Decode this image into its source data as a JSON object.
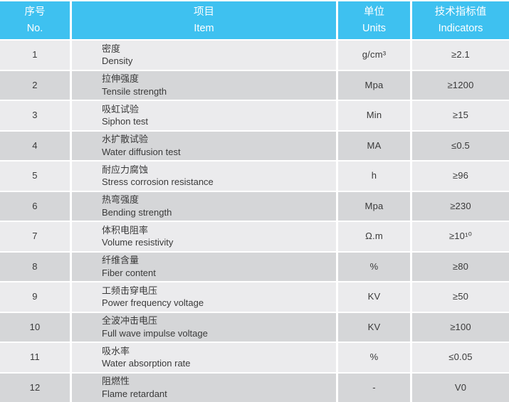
{
  "colors": {
    "header_bg": "#3EC1F0",
    "header_text": "#FFFFFF",
    "row_light": "#EBEBED",
    "row_dark": "#D5D6D8",
    "cell_text": "#3A3A3A"
  },
  "table": {
    "headers": [
      {
        "zh": "序号",
        "en": "No."
      },
      {
        "zh": "项目",
        "en": "Item"
      },
      {
        "zh": "单位",
        "en": "Units"
      },
      {
        "zh": "技术指标值",
        "en": "Indicators"
      }
    ],
    "rows": [
      {
        "no": "1",
        "item_zh": "密度",
        "item_en": "Density",
        "unit": "g/cm³",
        "indicator": "≥2.1"
      },
      {
        "no": "2",
        "item_zh": "拉伸强度",
        "item_en": "Tensile strength",
        "unit": "Mpa",
        "indicator": "≥1200"
      },
      {
        "no": "3",
        "item_zh": "吸虹试验",
        "item_en": "Siphon test",
        "unit": "Min",
        "indicator": "≥15"
      },
      {
        "no": "4",
        "item_zh": "水扩散试验",
        "item_en": "Water diffusion test",
        "unit": "MA",
        "indicator": "≤0.5"
      },
      {
        "no": "5",
        "item_zh": "耐应力腐蚀",
        "item_en": "Stress corrosion resistance",
        "unit": "h",
        "indicator": "≥96"
      },
      {
        "no": "6",
        "item_zh": "热弯强度",
        "item_en": "Bending strength",
        "unit": "Mpa",
        "indicator": "≥230"
      },
      {
        "no": "7",
        "item_zh": "体积电阻率",
        "item_en": "Volume resistivity",
        "unit": "Ω.m",
        "indicator": "≥10¹⁰"
      },
      {
        "no": "8",
        "item_zh": "纤维含量",
        "item_en": "Fiber content",
        "unit": "%",
        "indicator": "≥80"
      },
      {
        "no": "9",
        "item_zh": "工频击穿电压",
        "item_en": "Power frequency voltage",
        "unit": "KV",
        "indicator": "≥50"
      },
      {
        "no": "10",
        "item_zh": "全波冲击电压",
        "item_en": "Full wave impulse voltage",
        "unit": "KV",
        "indicator": "≥100"
      },
      {
        "no": "11",
        "item_zh": "吸水率",
        "item_en": "Water absorption rate",
        "unit": "%",
        "indicator": "≤0.05"
      },
      {
        "no": "12",
        "item_zh": "阻燃性",
        "item_en": "Flame retardant",
        "unit": "-",
        "indicator": "V0"
      }
    ]
  }
}
